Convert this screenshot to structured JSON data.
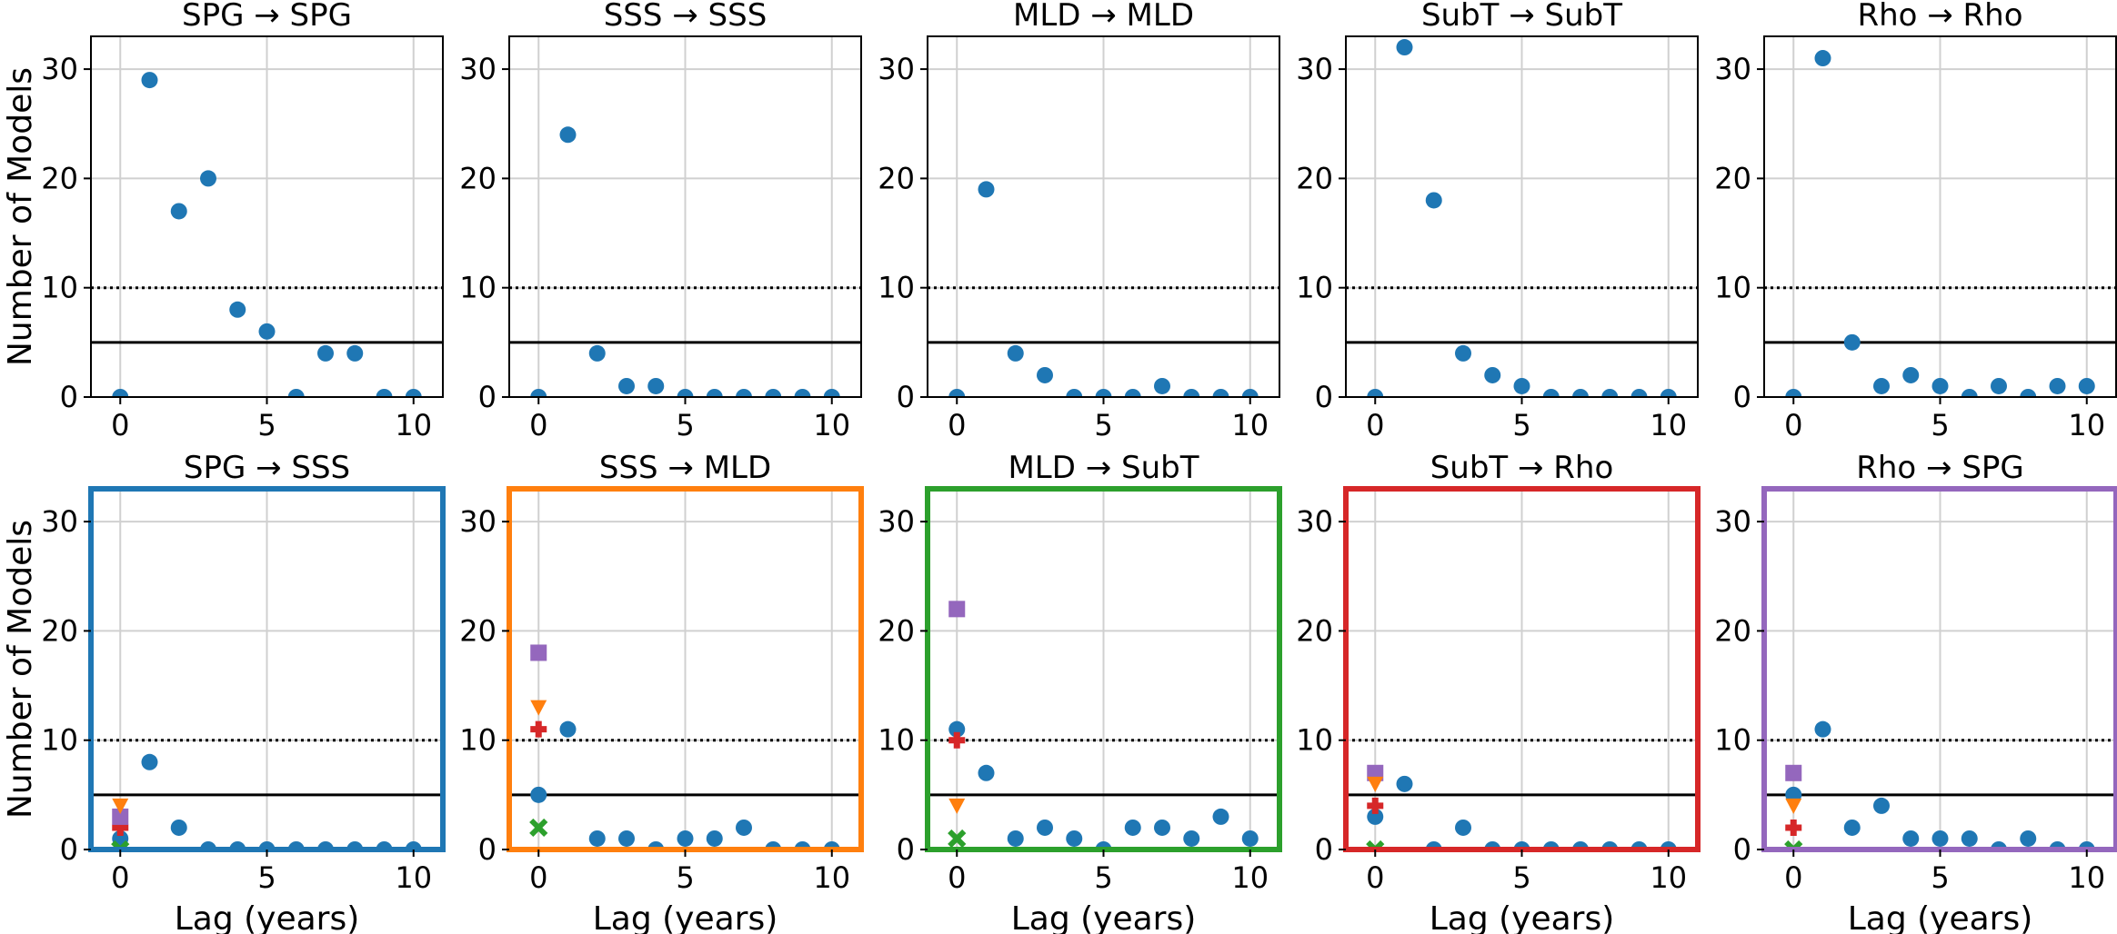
{
  "chart_data": {
    "type": "scatter",
    "ylabel": "Number of Models",
    "xlabel": "Lag (years)",
    "xlim": [
      -1,
      11
    ],
    "ylim": [
      0,
      33
    ],
    "xticks": [
      0,
      5,
      10
    ],
    "yticks": [
      0,
      10,
      20,
      30
    ],
    "grid": true,
    "reference_lines": [
      {
        "y": 10,
        "style": "dotted",
        "color": "#000000"
      },
      {
        "y": 5,
        "style": "solid",
        "color": "#000000"
      }
    ],
    "marker_colors": {
      "circle": "#1f77b4",
      "triangle_down": "#ff7f0e",
      "square": "#9467bd",
      "plus": "#d62728",
      "x": "#2ca02c"
    },
    "panels": [
      {
        "title": "SPG → SPG",
        "row": 0,
        "frame_color": "#000000",
        "series": [
          {
            "marker": "circle",
            "x": [
              0,
              1,
              2,
              3,
              4,
              5,
              6,
              7,
              8,
              9,
              10
            ],
            "y": [
              0,
              29,
              17,
              20,
              8,
              6,
              0,
              4,
              4,
              0,
              0
            ]
          }
        ]
      },
      {
        "title": "SSS → SSS",
        "row": 0,
        "frame_color": "#000000",
        "series": [
          {
            "marker": "circle",
            "x": [
              0,
              1,
              2,
              3,
              4,
              5,
              6,
              7,
              8,
              9,
              10
            ],
            "y": [
              0,
              24,
              4,
              1,
              1,
              0,
              0,
              0,
              0,
              0,
              0
            ]
          }
        ]
      },
      {
        "title": "MLD → MLD",
        "row": 0,
        "frame_color": "#000000",
        "series": [
          {
            "marker": "circle",
            "x": [
              0,
              1,
              2,
              3,
              4,
              5,
              6,
              7,
              8,
              9,
              10
            ],
            "y": [
              0,
              19,
              4,
              2,
              0,
              0,
              0,
              1,
              0,
              0,
              0
            ]
          }
        ]
      },
      {
        "title": "SubT → SubT",
        "row": 0,
        "frame_color": "#000000",
        "series": [
          {
            "marker": "circle",
            "x": [
              0,
              1,
              2,
              3,
              4,
              5,
              6,
              7,
              8,
              9,
              10
            ],
            "y": [
              0,
              32,
              18,
              4,
              2,
              1,
              0,
              0,
              0,
              0,
              0
            ]
          }
        ]
      },
      {
        "title": "Rho → Rho",
        "row": 0,
        "frame_color": "#000000",
        "series": [
          {
            "marker": "circle",
            "x": [
              0,
              1,
              2,
              3,
              4,
              5,
              6,
              7,
              8,
              9,
              10
            ],
            "y": [
              0,
              31,
              5,
              1,
              2,
              1,
              0,
              1,
              0,
              1,
              1
            ]
          }
        ]
      },
      {
        "title": "SPG → SSS",
        "row": 1,
        "frame_color": "#1f77b4",
        "series": [
          {
            "marker": "circle",
            "x": [
              0,
              1,
              2,
              3,
              4,
              5,
              6,
              7,
              8,
              9,
              10
            ],
            "y": [
              1,
              8,
              2,
              0,
              0,
              0,
              0,
              0,
              0,
              0,
              0
            ]
          },
          {
            "marker": "triangle_down",
            "x": [
              0
            ],
            "y": [
              4
            ]
          },
          {
            "marker": "square",
            "x": [
              0
            ],
            "y": [
              3
            ]
          },
          {
            "marker": "plus",
            "x": [
              0
            ],
            "y": [
              2
            ]
          },
          {
            "marker": "x",
            "x": [
              0
            ],
            "y": [
              0
            ]
          }
        ]
      },
      {
        "title": "SSS → MLD",
        "row": 1,
        "frame_color": "#ff7f0e",
        "series": [
          {
            "marker": "circle",
            "x": [
              0,
              1,
              2,
              3,
              4,
              5,
              6,
              7,
              8,
              9,
              10
            ],
            "y": [
              5,
              11,
              1,
              1,
              0,
              1,
              1,
              2,
              0,
              0,
              0
            ]
          },
          {
            "marker": "triangle_down",
            "x": [
              0
            ],
            "y": [
              13
            ]
          },
          {
            "marker": "square",
            "x": [
              0
            ],
            "y": [
              18
            ]
          },
          {
            "marker": "plus",
            "x": [
              0
            ],
            "y": [
              11
            ]
          },
          {
            "marker": "x",
            "x": [
              0
            ],
            "y": [
              2
            ]
          }
        ]
      },
      {
        "title": "MLD → SubT",
        "row": 1,
        "frame_color": "#2ca02c",
        "series": [
          {
            "marker": "circle",
            "x": [
              0,
              1,
              2,
              3,
              4,
              5,
              6,
              7,
              8,
              9,
              10
            ],
            "y": [
              11,
              7,
              1,
              2,
              1,
              0,
              2,
              2,
              1,
              3,
              1
            ]
          },
          {
            "marker": "triangle_down",
            "x": [
              0
            ],
            "y": [
              4
            ]
          },
          {
            "marker": "square",
            "x": [
              0
            ],
            "y": [
              22
            ]
          },
          {
            "marker": "plus",
            "x": [
              0
            ],
            "y": [
              10
            ]
          },
          {
            "marker": "x",
            "x": [
              0
            ],
            "y": [
              1
            ]
          }
        ]
      },
      {
        "title": "SubT → Rho",
        "row": 1,
        "frame_color": "#d62728",
        "series": [
          {
            "marker": "circle",
            "x": [
              0,
              1,
              2,
              3,
              4,
              5,
              6,
              7,
              8,
              9,
              10
            ],
            "y": [
              3,
              6,
              0,
              2,
              0,
              0,
              0,
              0,
              0,
              0,
              0
            ]
          },
          {
            "marker": "triangle_down",
            "x": [
              0
            ],
            "y": [
              6
            ]
          },
          {
            "marker": "square",
            "x": [
              0
            ],
            "y": [
              7
            ]
          },
          {
            "marker": "plus",
            "x": [
              0
            ],
            "y": [
              4
            ]
          },
          {
            "marker": "x",
            "x": [
              0
            ],
            "y": [
              0
            ]
          }
        ]
      },
      {
        "title": "Rho → SPG",
        "row": 1,
        "frame_color": "#9467bd",
        "series": [
          {
            "marker": "circle",
            "x": [
              0,
              1,
              2,
              3,
              4,
              5,
              6,
              7,
              8,
              9,
              10
            ],
            "y": [
              5,
              11,
              2,
              4,
              1,
              1,
              1,
              0,
              1,
              0,
              0
            ]
          },
          {
            "marker": "triangle_down",
            "x": [
              0
            ],
            "y": [
              4
            ]
          },
          {
            "marker": "square",
            "x": [
              0
            ],
            "y": [
              7
            ]
          },
          {
            "marker": "plus",
            "x": [
              0
            ],
            "y": [
              2
            ]
          },
          {
            "marker": "x",
            "x": [
              0
            ],
            "y": [
              0
            ]
          }
        ]
      }
    ]
  }
}
